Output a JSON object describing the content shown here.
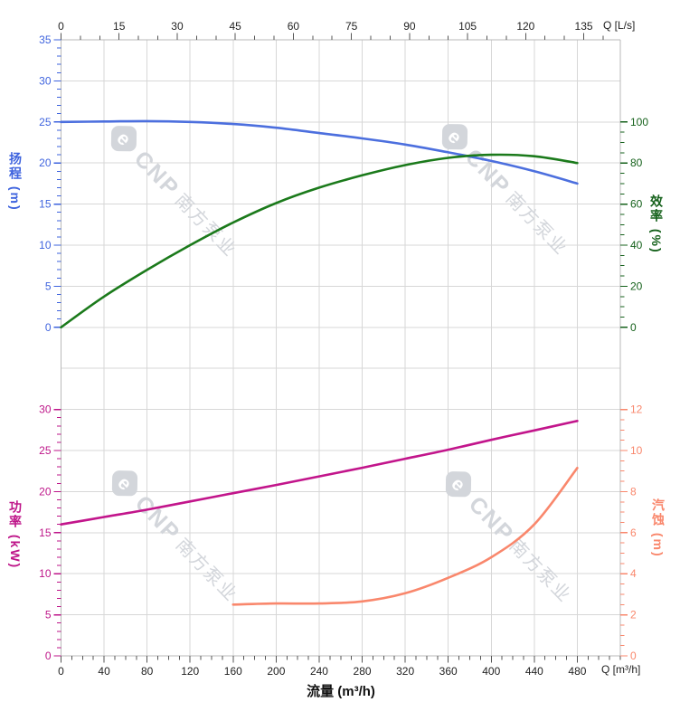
{
  "page": {
    "background": "#ffffff"
  },
  "watermark": {
    "logo_letter": "e",
    "brand": "CNP",
    "text": "南方泵业",
    "color": "#d3d6db"
  },
  "chart_data": [
    {
      "type": "line",
      "name": "head-efficiency-curves",
      "x_axis": {
        "label": "Q [L/s]",
        "unit": "L/s",
        "ticks": [
          0,
          15,
          30,
          45,
          60,
          75,
          90,
          105,
          120,
          135
        ],
        "minor_step": 5
      },
      "y_left": {
        "label": "扬程 (m)",
        "unit": "m",
        "ticks": [
          0,
          5,
          10,
          15,
          20,
          25,
          30,
          35
        ],
        "minor_step": 1,
        "range": [
          0,
          35
        ],
        "color": "#3E63DE"
      },
      "y_right": {
        "label": "效率 (%)",
        "unit": "%",
        "ticks": [
          0,
          20,
          40,
          60,
          80,
          100
        ],
        "minor_step": 5,
        "range": [
          0,
          100
        ],
        "color": "#15611B"
      },
      "series": [
        {
          "key": "head",
          "name": "扬程",
          "axis": "left",
          "color": "#4C6FDE",
          "points": [
            [
              0,
              25
            ],
            [
              40,
              25.05
            ],
            [
              80,
              25.1
            ],
            [
              120,
              25
            ],
            [
              160,
              24.75
            ],
            [
              200,
              24.3
            ],
            [
              240,
              23.65
            ],
            [
              280,
              23
            ],
            [
              320,
              22.25
            ],
            [
              360,
              21.3
            ],
            [
              400,
              20.25
            ],
            [
              440,
              19
            ],
            [
              480,
              17.5
            ]
          ]
        },
        {
          "key": "efficiency",
          "name": "效率",
          "axis": "right",
          "color": "#1B7A1B",
          "points": [
            [
              0,
              0
            ],
            [
              40,
              15
            ],
            [
              80,
              28
            ],
            [
              120,
              40
            ],
            [
              160,
              51
            ],
            [
              200,
              60.5
            ],
            [
              240,
              68
            ],
            [
              280,
              74
            ],
            [
              320,
              79
            ],
            [
              360,
              82.5
            ],
            [
              400,
              84
            ],
            [
              440,
              83.3
            ],
            [
              480,
              80
            ]
          ]
        }
      ]
    },
    {
      "type": "line",
      "name": "power-npsh-curves",
      "x_axis": {
        "label": "Q [m³/h]",
        "axis_title": "流量 (m³/h)",
        "unit": "m³/h",
        "ticks": [
          0,
          40,
          80,
          120,
          160,
          200,
          240,
          280,
          320,
          360,
          400,
          440,
          480
        ],
        "minor_step": 10
      },
      "y_left": {
        "label": "功率 (kW)",
        "unit": "kW",
        "ticks": [
          0,
          5,
          10,
          15,
          20,
          25,
          30
        ],
        "minor_step": 1,
        "range": [
          0,
          30
        ],
        "color": "#BE1589"
      },
      "y_right": {
        "label": "汽蚀 (m)",
        "unit": "m",
        "ticks": [
          0,
          2,
          4,
          6,
          8,
          10,
          12
        ],
        "minor_step": 0.5,
        "range": [
          0,
          12
        ],
        "color": "#F9876C"
      },
      "series": [
        {
          "key": "power",
          "name": "功率",
          "axis": "left",
          "color": "#C2158B",
          "points": [
            [
              0,
              16
            ],
            [
              40,
              16.9
            ],
            [
              80,
              17.8
            ],
            [
              120,
              18.8
            ],
            [
              160,
              19.8
            ],
            [
              200,
              20.8
            ],
            [
              240,
              21.85
            ],
            [
              280,
              22.9
            ],
            [
              320,
              24
            ],
            [
              360,
              25.1
            ],
            [
              400,
              26.3
            ],
            [
              440,
              27.45
            ],
            [
              480,
              28.6
            ]
          ]
        },
        {
          "key": "npsh",
          "name": "汽蚀",
          "axis": "right",
          "color": "#F9876C",
          "points": [
            [
              160,
              2.5
            ],
            [
              200,
              2.55
            ],
            [
              240,
              2.55
            ],
            [
              280,
              2.65
            ],
            [
              320,
              3.05
            ],
            [
              360,
              3.8
            ],
            [
              400,
              4.8
            ],
            [
              440,
              6.4
            ],
            [
              480,
              9.15
            ]
          ]
        }
      ]
    }
  ]
}
